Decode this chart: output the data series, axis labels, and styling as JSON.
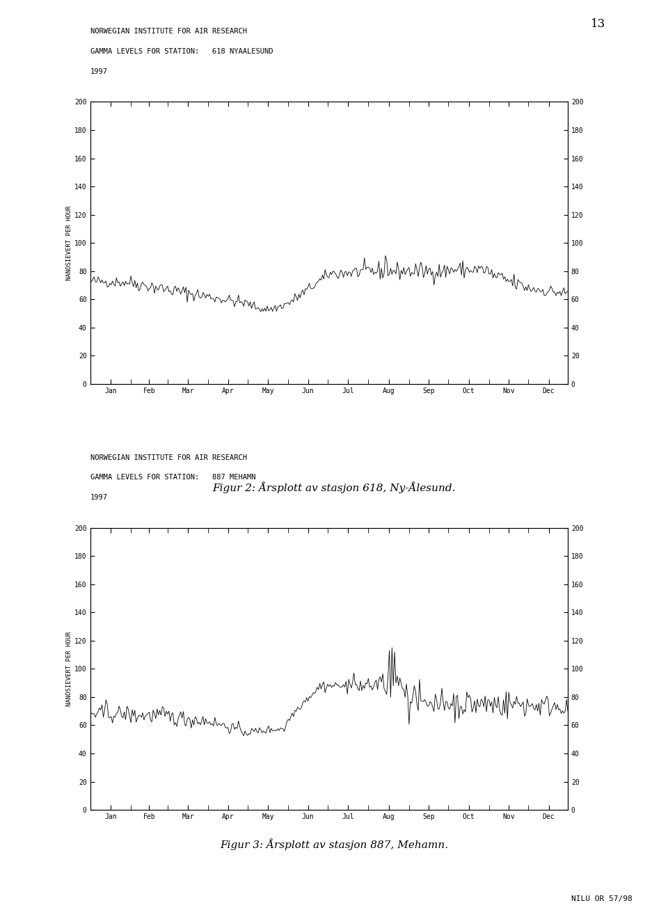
{
  "page_number": "13",
  "report_number": "NILU OR 57/98",
  "figure_caption_1": "Figur 2: Årsplott av stasjon 618, Ny-Ålesund.",
  "figure_caption_2": "Figur 3: Årsplott av stasjon 887, Mehamn.",
  "chart1": {
    "header_line1": "NORWEGIAN INSTITUTE FOR AIR RESEARCH",
    "header_line2": "GAMMA LEVELS FOR STATION:   618 NYAALESUND",
    "header_line3": "1997",
    "ylabel": "NANOSIEVERT PER HOUR",
    "ylim": [
      0,
      200
    ],
    "yticks": [
      0,
      20,
      40,
      60,
      80,
      100,
      120,
      140,
      160,
      180,
      200
    ],
    "months": [
      "Jan",
      "Feb",
      "Mar",
      "Apr",
      "May",
      "Jun",
      "Jul",
      "Aug",
      "Sep",
      "Oct",
      "Nov",
      "Dec"
    ]
  },
  "chart2": {
    "header_line1": "NORWEGIAN INSTITUTE FOR AIR RESEARCH",
    "header_line2": "GAMMA LEVELS FOR STATION:   887 MEHAMN",
    "header_line3": "1997",
    "ylabel": "NANOSIEVERT PER HOUR",
    "ylim": [
      0,
      200
    ],
    "yticks": [
      0,
      20,
      40,
      60,
      80,
      100,
      120,
      140,
      160,
      180,
      200
    ],
    "months": [
      "Jan",
      "Feb",
      "Mar",
      "Apr",
      "May",
      "Jun",
      "Jul",
      "Aug",
      "Sep",
      "Oct",
      "Nov",
      "Dec"
    ]
  },
  "bg_color": "#ffffff",
  "line_color": "#000000",
  "text_color": "#000000"
}
